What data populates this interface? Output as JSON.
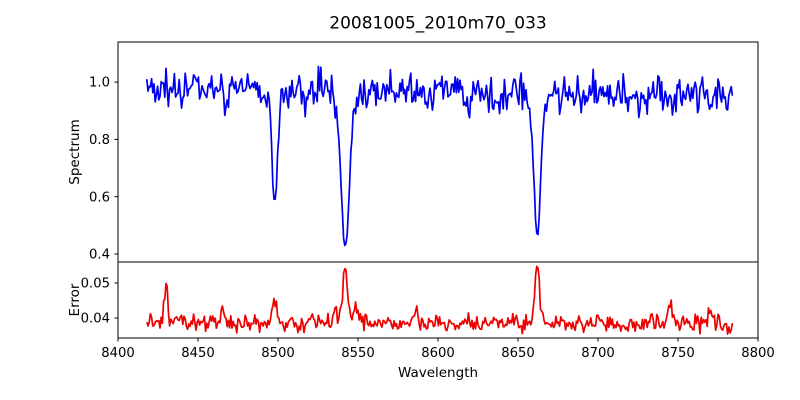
{
  "canvas": {
    "background": "#ffffff",
    "frame_color": "#000000"
  },
  "chart_data": {
    "type": "line",
    "title": "20081005_2010m70_033",
    "xlabel": "Wavelength",
    "xlim": [
      8400,
      8800
    ],
    "x_ticks": [
      "8400",
      "8450",
      "8500",
      "8550",
      "8600",
      "8650",
      "8700",
      "8750",
      "8800"
    ],
    "x_tick_values": [
      8400,
      8450,
      8500,
      8550,
      8600,
      8650,
      8700,
      8750,
      8800
    ],
    "x_data_range": [
      8418,
      8784
    ],
    "sample_step_angstrom": 0.75,
    "grid": false,
    "legend": null,
    "random_seed": 20081005,
    "panels": [
      {
        "id": "spectrum",
        "ylabel": "Spectrum",
        "ylim": [
          0.372,
          1.14
        ],
        "y_ticks": [
          "1.0",
          "0.8",
          "0.6",
          "0.4"
        ],
        "y_tick_values": [
          1.0,
          0.8,
          0.6,
          0.4
        ],
        "line_color": "#0000ee",
        "continuum_level": 0.97,
        "noise_amplitude": 0.11,
        "absorption_lines": [
          {
            "center": 8498.0,
            "depth": 0.4,
            "width": 1.6
          },
          {
            "center": 8542.1,
            "depth": 0.56,
            "width": 2.5
          },
          {
            "center": 8662.1,
            "depth": 0.49,
            "width": 2.0
          }
        ],
        "minor_lines": [
          {
            "center": 8440,
            "depth": 0.05,
            "width": 1.0
          },
          {
            "center": 8468,
            "depth": 0.06,
            "width": 1.2
          },
          {
            "center": 8517,
            "depth": 0.055,
            "width": 1.3
          },
          {
            "center": 8573,
            "depth": 0.045,
            "width": 1.2
          },
          {
            "center": 8594,
            "depth": 0.05,
            "width": 1.2
          },
          {
            "center": 8619,
            "depth": 0.065,
            "width": 1.4
          },
          {
            "center": 8638,
            "depth": 0.045,
            "width": 1.1
          },
          {
            "center": 8677,
            "depth": 0.05,
            "width": 1.2
          },
          {
            "center": 8725,
            "depth": 0.045,
            "width": 1.1
          },
          {
            "center": 8747,
            "depth": 0.055,
            "width": 1.2
          },
          {
            "center": 8771,
            "depth": 0.08,
            "width": 1.5
          }
        ]
      },
      {
        "id": "error",
        "ylabel": "Error",
        "ylim": [
          0.0343,
          0.056
        ],
        "y_ticks": [
          "0.05",
          "0.04"
        ],
        "y_tick_values": [
          0.05,
          0.04
        ],
        "line_color": "#ee0000",
        "baseline_level": 0.0385,
        "noise_amplitude": 0.0042,
        "error_peaks": [
          {
            "center": 8430,
            "height": 0.01,
            "width": 1.0
          },
          {
            "center": 8465,
            "height": 0.004,
            "width": 1.4
          },
          {
            "center": 8498,
            "height": 0.0058,
            "width": 1.6
          },
          {
            "center": 8521,
            "height": 0.0028,
            "width": 1.4
          },
          {
            "center": 8536,
            "height": 0.0035,
            "width": 1.5
          },
          {
            "center": 8542,
            "height": 0.015,
            "width": 1.5
          },
          {
            "center": 8549,
            "height": 0.0035,
            "width": 2.0
          },
          {
            "center": 8586,
            "height": 0.0042,
            "width": 1.4
          },
          {
            "center": 8616,
            "height": 0.0022,
            "width": 1.4
          },
          {
            "center": 8662,
            "height": 0.017,
            "width": 1.5
          },
          {
            "center": 8700,
            "height": 0.0022,
            "width": 1.4
          },
          {
            "center": 8745,
            "height": 0.0052,
            "width": 1.2
          },
          {
            "center": 8770,
            "height": 0.0028,
            "width": 1.5
          },
          {
            "center": 8782,
            "height": -0.0022,
            "width": 1.5
          }
        ]
      }
    ]
  }
}
